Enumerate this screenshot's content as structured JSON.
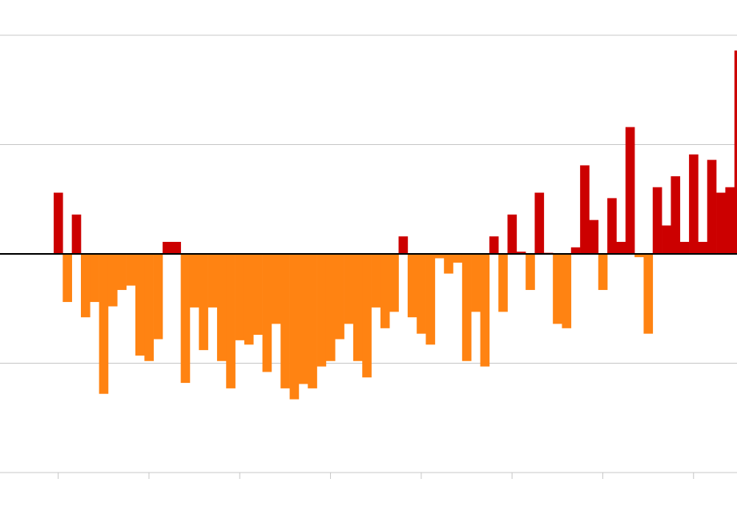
{
  "chart_data": {
    "type": "bar",
    "title": "",
    "xlabel": "",
    "ylabel": "",
    "ylim": [
      -2,
      2
    ],
    "yticks": [
      -2,
      -1,
      0,
      1,
      2
    ],
    "xlim": [
      1,
      81
    ],
    "xticks": [
      1,
      11,
      21,
      31,
      41,
      51,
      61,
      71
    ],
    "grid": true,
    "colors": {
      "positive": "#cc0000",
      "negative": "#ff8312",
      "zero_line": "#000000",
      "grid": "#c8c8c8"
    },
    "x": [
      1,
      2,
      3,
      4,
      5,
      6,
      7,
      8,
      9,
      10,
      11,
      12,
      13,
      14,
      15,
      16,
      17,
      18,
      19,
      20,
      21,
      22,
      23,
      24,
      25,
      26,
      27,
      28,
      29,
      30,
      31,
      32,
      33,
      34,
      35,
      36,
      37,
      38,
      39,
      40,
      41,
      42,
      43,
      44,
      45,
      46,
      47,
      48,
      49,
      50,
      51,
      52,
      53,
      54,
      55,
      56,
      57,
      58,
      59,
      60,
      61,
      62,
      63,
      64,
      65,
      66,
      67,
      68,
      69,
      70,
      71,
      72,
      73,
      74,
      75,
      76,
      77,
      78,
      79,
      80
    ],
    "values": [
      0.56,
      -0.44,
      0.36,
      -0.58,
      -0.44,
      -1.28,
      -0.48,
      -0.33,
      -0.29,
      -0.93,
      -0.98,
      -0.78,
      0.11,
      0.11,
      -1.18,
      -0.49,
      -0.88,
      -0.49,
      -0.98,
      -1.23,
      -0.79,
      -0.83,
      -0.74,
      -1.08,
      -0.64,
      -1.23,
      -1.33,
      -1.19,
      -1.23,
      -1.03,
      -0.98,
      -0.78,
      -0.64,
      -0.98,
      -1.13,
      -0.49,
      -0.68,
      -0.53,
      0.16,
      -0.58,
      -0.73,
      -0.83,
      -0.04,
      -0.18,
      -0.08,
      -0.98,
      -0.53,
      -1.03,
      0.16,
      -0.53,
      0.36,
      0.02,
      -0.33,
      0.56,
      0.01,
      -0.64,
      -0.68,
      0.06,
      0.81,
      0.31,
      -0.33,
      0.51,
      0.11,
      1.16,
      -0.03,
      -0.73,
      0.61,
      0.26,
      0.71,
      0.11,
      0.91,
      0.11,
      0.86,
      0.56,
      0.61,
      1.86,
      0,
      0,
      0,
      0
    ]
  }
}
